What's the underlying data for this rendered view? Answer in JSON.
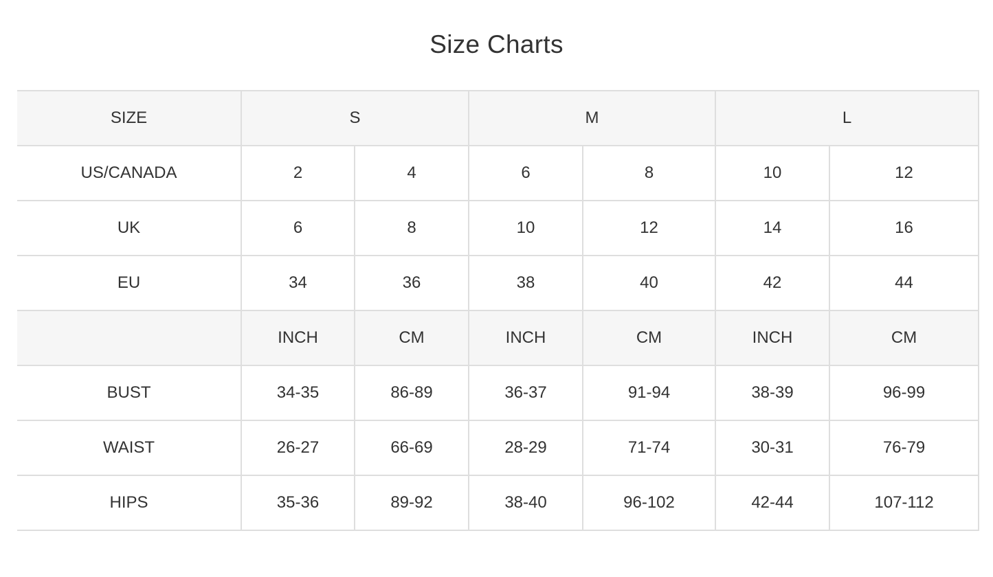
{
  "title": "Size Charts",
  "header": {
    "label": "SIZE",
    "groups": [
      "S",
      "M",
      "L"
    ]
  },
  "size_rows": [
    {
      "label": "US/CANADA",
      "values": [
        "2",
        "4",
        "6",
        "8",
        "10",
        "12"
      ]
    },
    {
      "label": "UK",
      "values": [
        "6",
        "8",
        "10",
        "12",
        "14",
        "16"
      ]
    },
    {
      "label": "EU",
      "values": [
        "34",
        "36",
        "38",
        "40",
        "42",
        "44"
      ]
    }
  ],
  "unit_row": {
    "label": "",
    "values": [
      "INCH",
      "CM",
      "INCH",
      "CM",
      "INCH",
      "CM"
    ]
  },
  "measure_rows": [
    {
      "label": "BUST",
      "values": [
        "34-35",
        "86-89",
        "36-37",
        "91-94",
        "38-39",
        "96-99"
      ]
    },
    {
      "label": "WAIST",
      "values": [
        "26-27",
        "66-69",
        "28-29",
        "71-74",
        "30-31",
        "76-79"
      ]
    },
    {
      "label": "HIPS",
      "values": [
        "35-36",
        "89-92",
        "38-40",
        "96-102",
        "42-44",
        "107-112"
      ]
    }
  ],
  "colors": {
    "header_bg": "#f6f6f6",
    "border": "#dedede",
    "text": "#333333"
  }
}
